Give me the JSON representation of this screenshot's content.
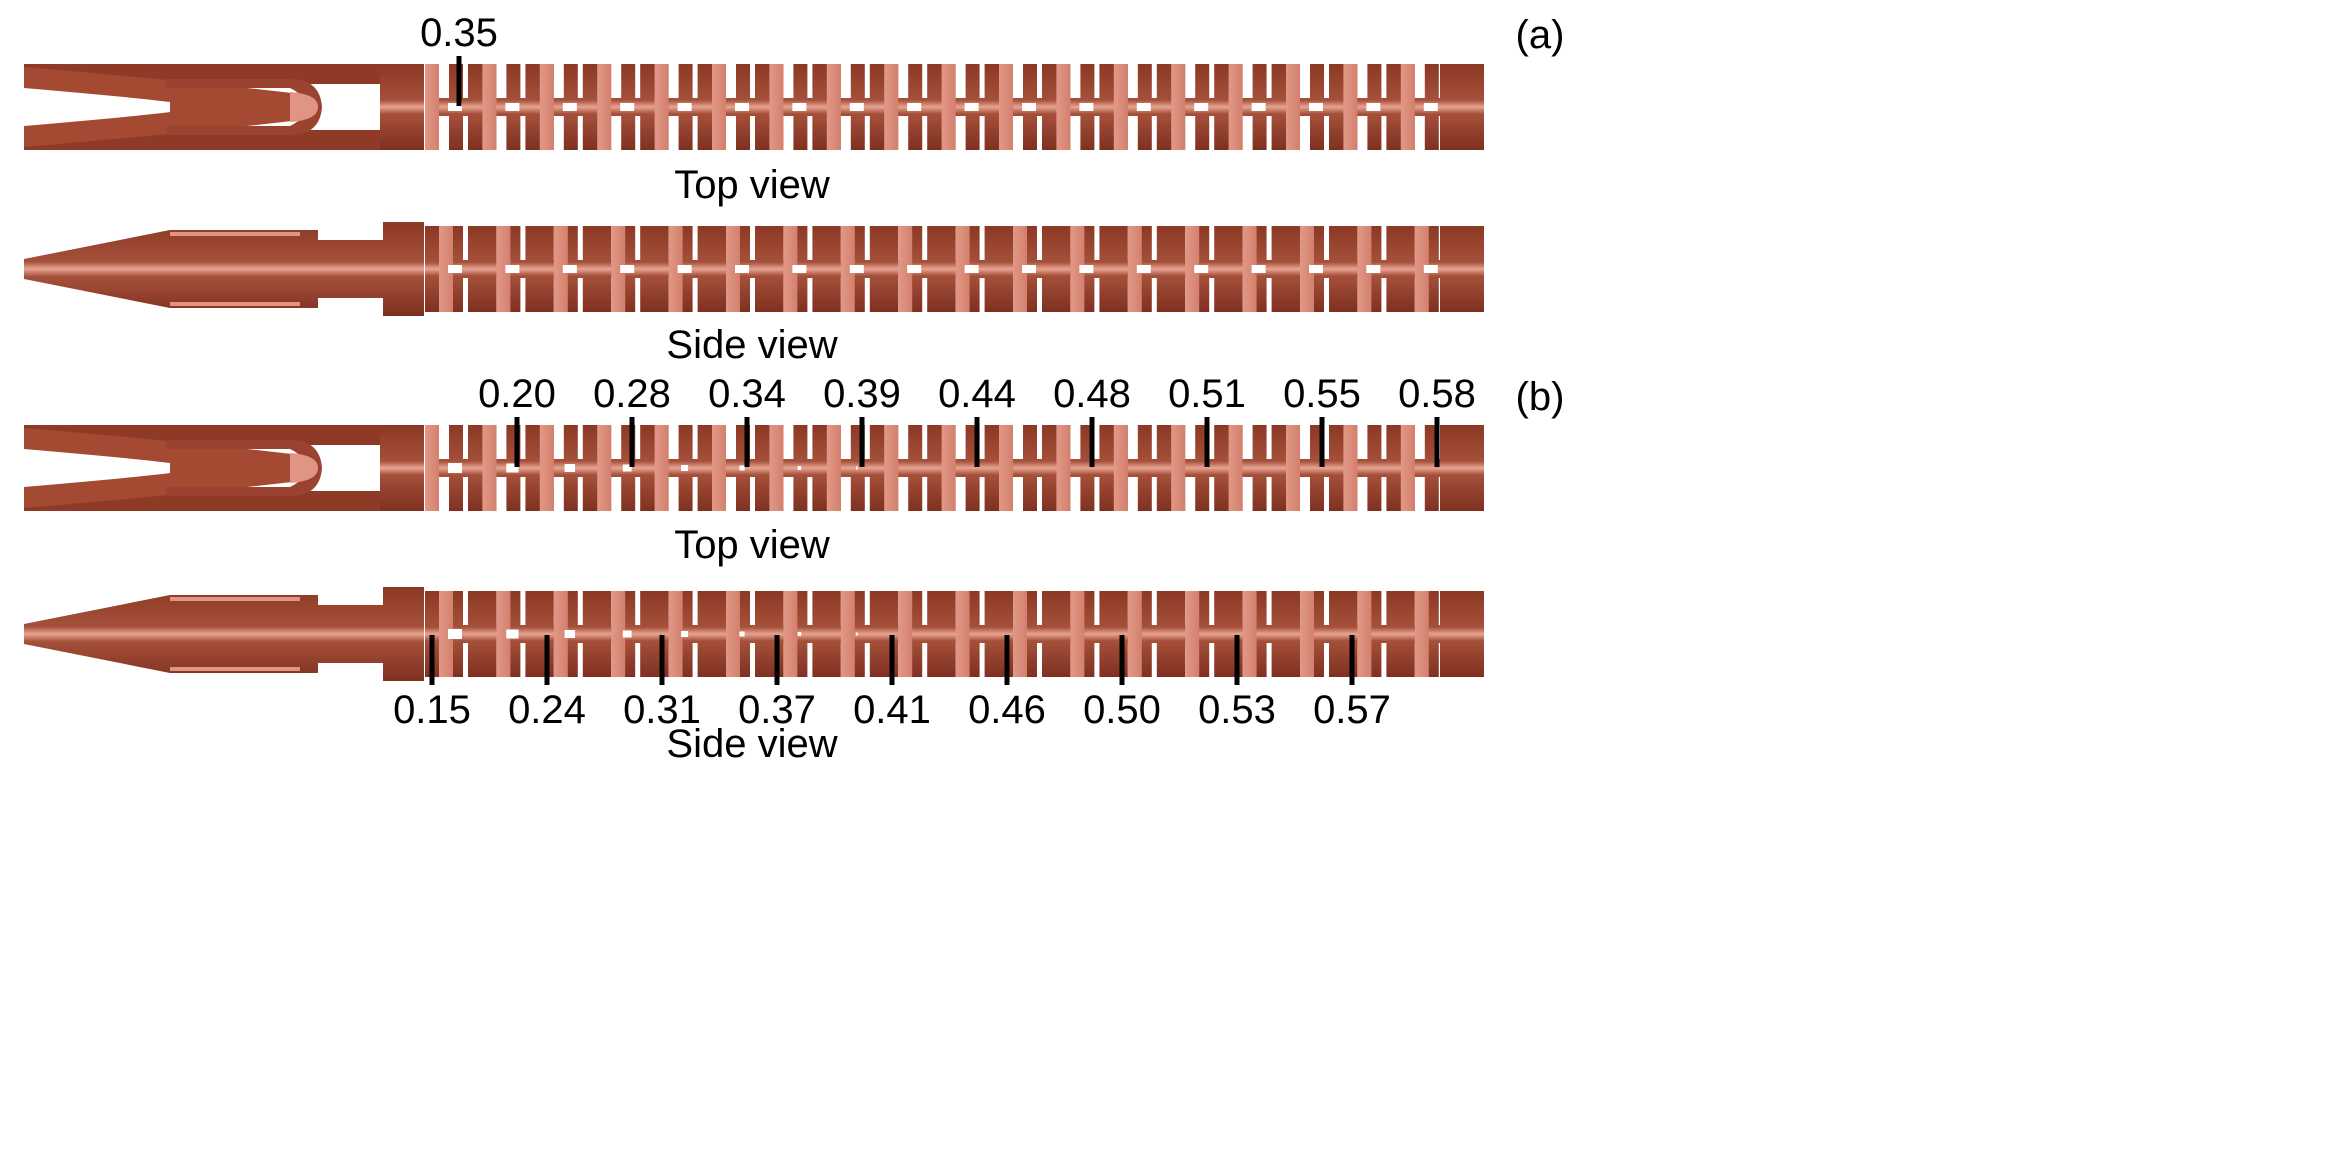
{
  "panels": [
    {
      "id": "a",
      "label": "(a)",
      "views": [
        {
          "caption": "Top view",
          "kind": "top",
          "cells": 18,
          "top_annotations": [
            "0.35"
          ],
          "bottom_annotations": []
        },
        {
          "caption": "Side view",
          "kind": "side",
          "cells": 18,
          "top_annotations": [],
          "bottom_annotations": []
        }
      ]
    },
    {
      "id": "b",
      "label": "(b)",
      "views": [
        {
          "caption": "Top view",
          "kind": "top",
          "cells": 18,
          "top_annotations": [
            "0.20",
            "0.28",
            "0.34",
            "0.39",
            "0.44",
            "0.48",
            "0.51",
            "0.55",
            "0.58"
          ],
          "bottom_annotations": []
        },
        {
          "caption": "Side view",
          "kind": "side",
          "cells": 18,
          "top_annotations": [],
          "bottom_annotations": [
            "0.15",
            "0.24",
            "0.31",
            "0.37",
            "0.41",
            "0.46",
            "0.50",
            "0.53",
            "0.57"
          ]
        }
      ]
    }
  ],
  "colors": {
    "body_dark": "#8e3a26",
    "body_mid": "#a44a33",
    "highlight": "#d98a78",
    "vane_light": "#e09484",
    "beam_hole": "#ffffff",
    "line": "#000000"
  }
}
